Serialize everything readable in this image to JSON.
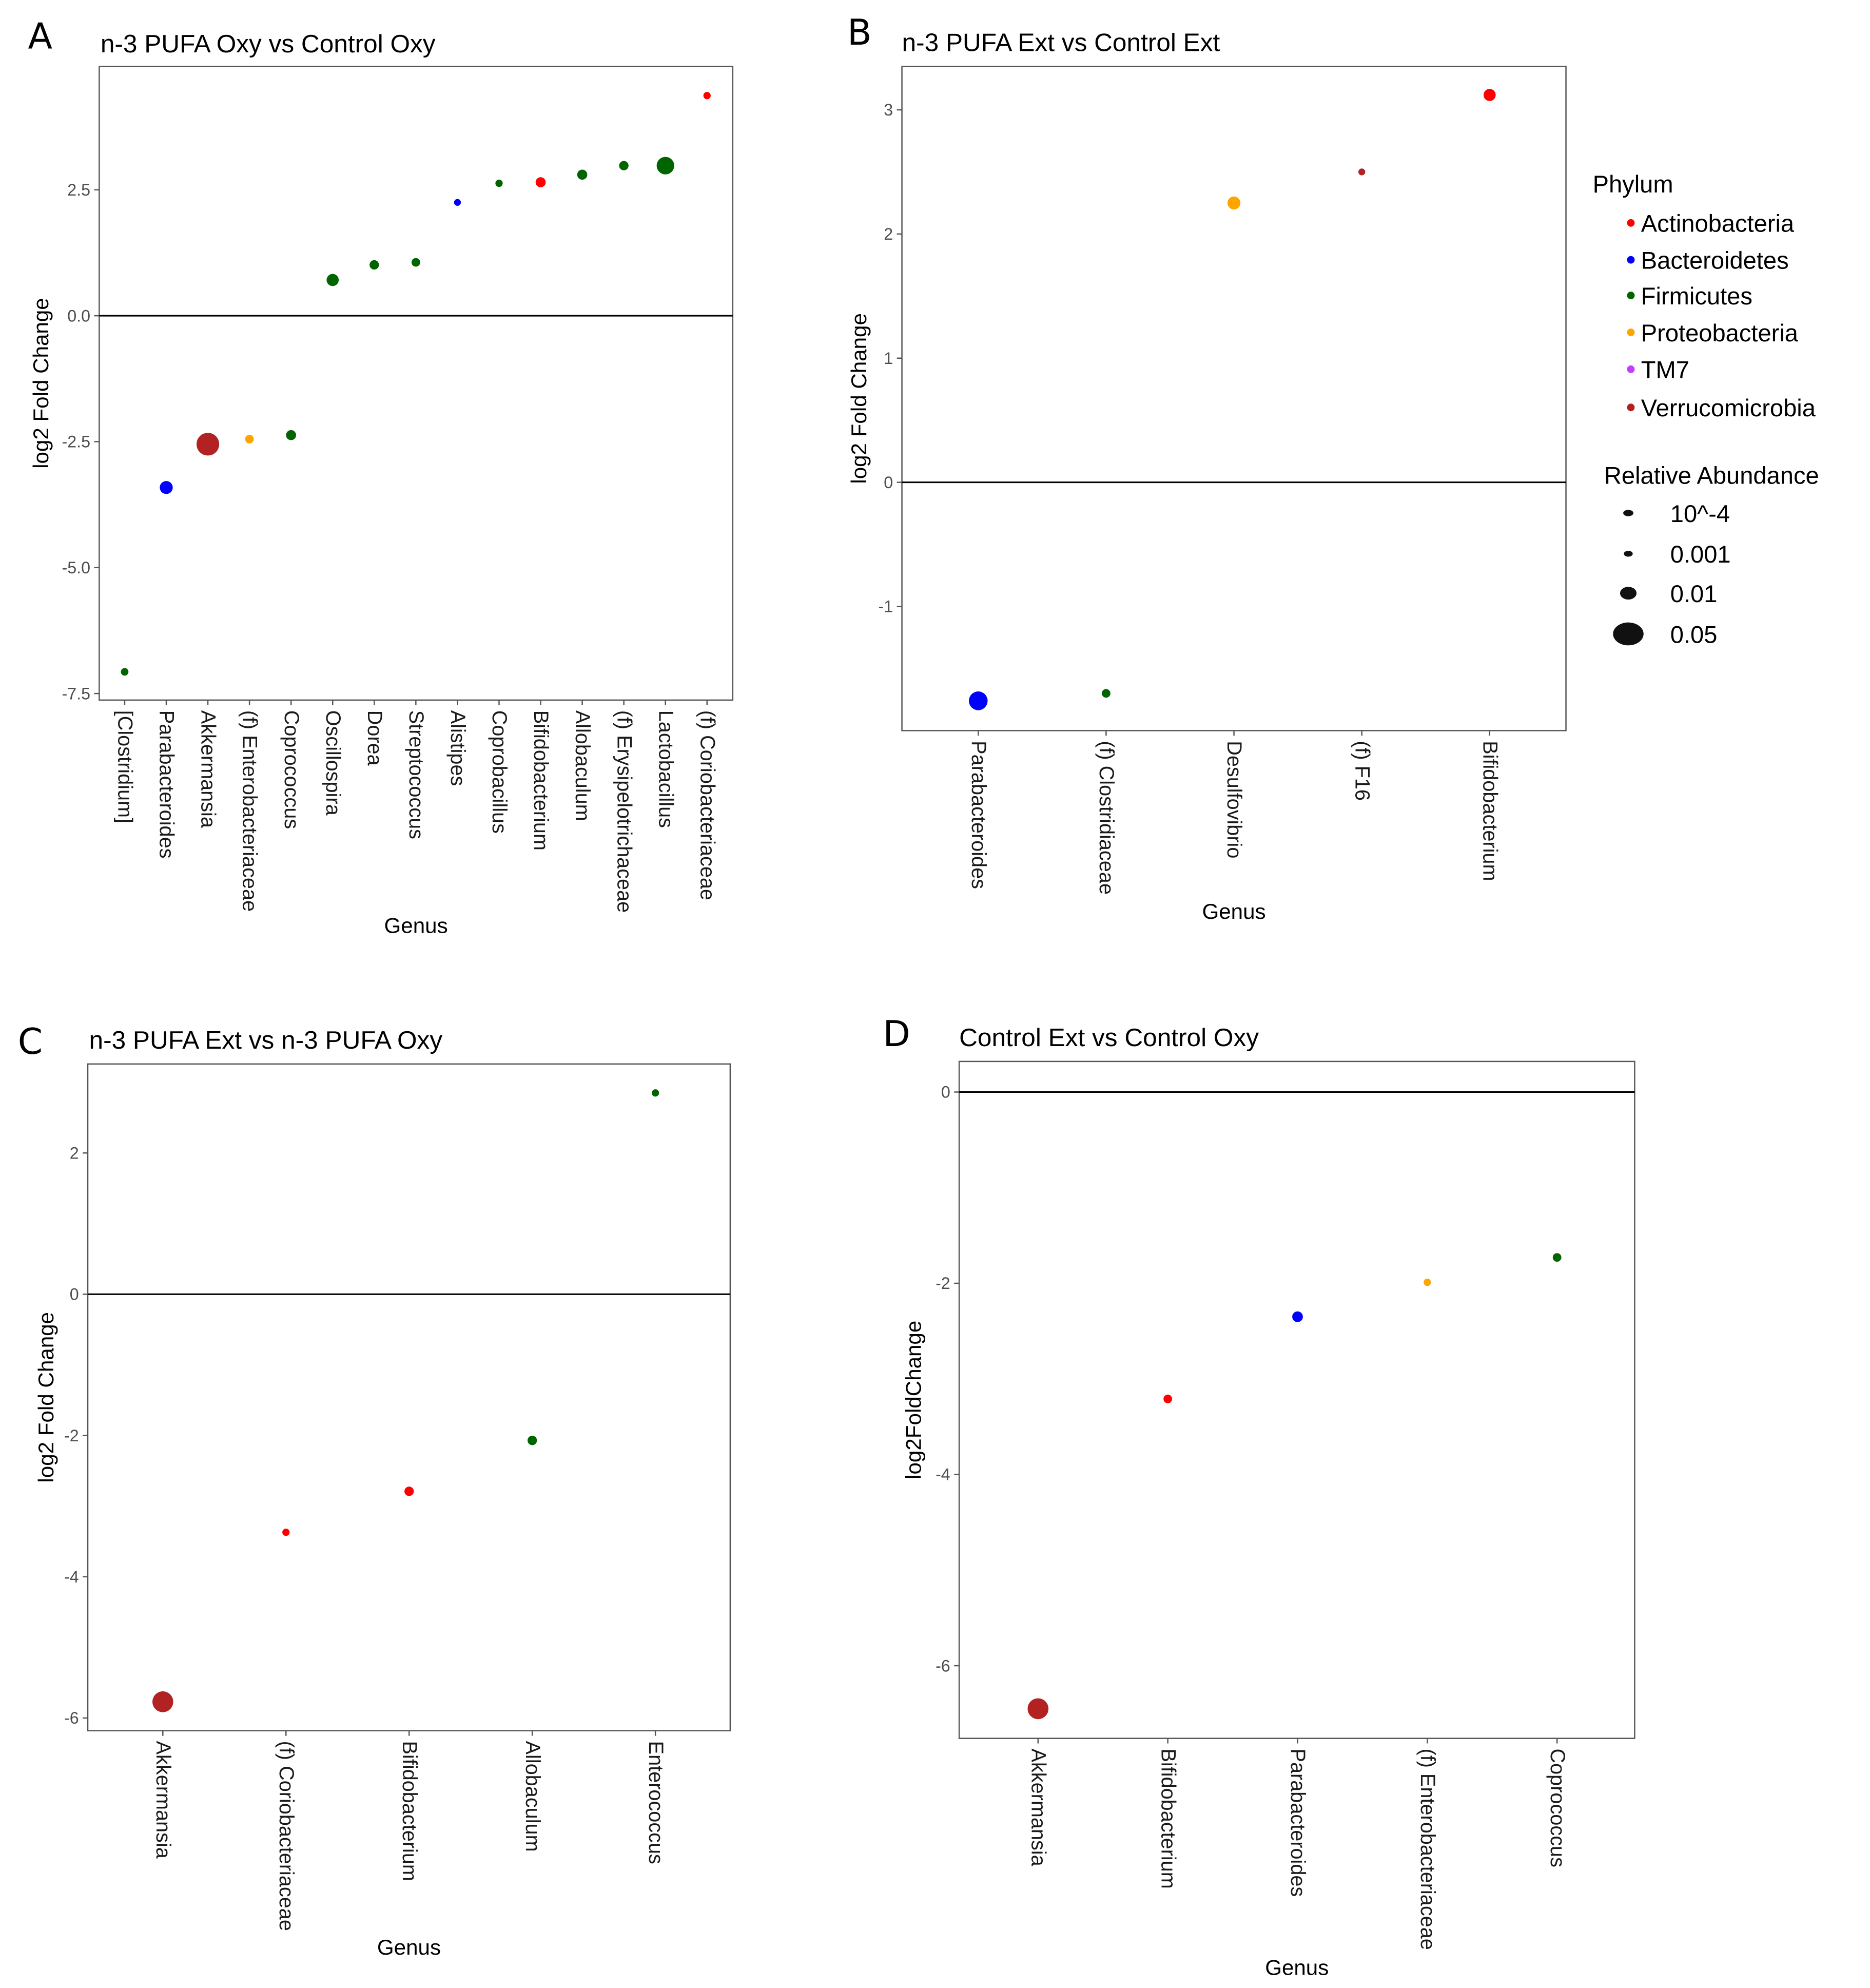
{
  "legend": {
    "phylum_title": "Phylum",
    "phyla": [
      {
        "name": "Actinobacteria",
        "color": "#ff0000"
      },
      {
        "name": "Bacteroidetes",
        "color": "#0000ff"
      },
      {
        "name": "Firmicutes",
        "color": "#006400"
      },
      {
        "name": "Proteobacteria",
        "color": "#ffa500"
      },
      {
        "name": "TM7",
        "color": "#bf3eff"
      },
      {
        "name": "Verrucomicrobia",
        "color": "#b22222"
      }
    ],
    "size_title": "Relative Abundance",
    "sizes": [
      {
        "label": "10^-4",
        "value": 0.0001
      },
      {
        "label": "0.001",
        "value": 0.001
      },
      {
        "label": "0.01",
        "value": 0.01
      },
      {
        "label": "0.05",
        "value": 0.05
      }
    ]
  },
  "chart_data": [
    {
      "type": "scatter",
      "letter": "A",
      "title": "n-3 PUFA Oxy vs Control Oxy",
      "xlabel": "Genus",
      "ylabel": "log2 Fold Change",
      "ylim": [
        -7.63,
        4.95
      ],
      "yticks": [
        2.5,
        0,
        -2.5,
        -5,
        -7.5
      ],
      "ytick_labels": [
        "2.5",
        "0.0",
        "-2.5",
        "-5.0",
        "-7.5"
      ],
      "points": [
        {
          "genus": "[Clostridium]",
          "y": -7.07,
          "phylum": "Firmicutes",
          "abundance": 0.001
        },
        {
          "genus": "Parabacteroides",
          "y": -3.41,
          "phylum": "Bacteroidetes",
          "abundance": 0.01
        },
        {
          "genus": "Akkermansia",
          "y": -2.55,
          "phylum": "Verrucomicrobia",
          "abundance": 0.05
        },
        {
          "genus": "(f) Enterobacteriaceae",
          "y": -2.45,
          "phylum": "Proteobacteria",
          "abundance": 0.002
        },
        {
          "genus": "Coprococcus",
          "y": -2.37,
          "phylum": "Firmicutes",
          "abundance": 0.004
        },
        {
          "genus": "Oscillospira",
          "y": 0.71,
          "phylum": "Firmicutes",
          "abundance": 0.008
        },
        {
          "genus": "Dorea",
          "y": 1.01,
          "phylum": "Firmicutes",
          "abundance": 0.003
        },
        {
          "genus": "Streptococcus",
          "y": 1.06,
          "phylum": "Firmicutes",
          "abundance": 0.002
        },
        {
          "genus": "Alistipes",
          "y": 2.25,
          "phylum": "Bacteroidetes",
          "abundance": 0.0005
        },
        {
          "genus": "Coprobacillus",
          "y": 2.63,
          "phylum": "Firmicutes",
          "abundance": 0.0008
        },
        {
          "genus": "Bifidobacterium",
          "y": 2.65,
          "phylum": "Actinobacteria",
          "abundance": 0.004
        },
        {
          "genus": "Allobaculum",
          "y": 2.8,
          "phylum": "Firmicutes",
          "abundance": 0.004
        },
        {
          "genus": "(f) Erysipelotrichaceae",
          "y": 2.98,
          "phylum": "Firmicutes",
          "abundance": 0.003
        },
        {
          "genus": "Lactobacillus",
          "y": 2.98,
          "phylum": "Firmicutes",
          "abundance": 0.025
        },
        {
          "genus": "(f) Coriobacteriaceae",
          "y": 4.37,
          "phylum": "Actinobacteria",
          "abundance": 0.0008
        }
      ]
    },
    {
      "type": "scatter",
      "letter": "B",
      "title": "n-3 PUFA Ext vs Control Ext",
      "xlabel": "Genus",
      "ylabel": "log2 Fold Change",
      "ylim": [
        -2.0,
        3.35
      ],
      "yticks": [
        3,
        2,
        1,
        0,
        -1
      ],
      "ytick_labels": [
        "3",
        "2",
        "1",
        "0",
        "-1"
      ],
      "points": [
        {
          "genus": "Parabacteroides",
          "y": -1.76,
          "phylum": "Bacteroidetes",
          "abundance": 0.03
        },
        {
          "genus": "(f) Clostridiaceae",
          "y": -1.7,
          "phylum": "Firmicutes",
          "abundance": 0.002
        },
        {
          "genus": "Desulfovibrio",
          "y": 2.25,
          "phylum": "Proteobacteria",
          "abundance": 0.01
        },
        {
          "genus": "(f) F16",
          "y": 2.5,
          "phylum": "Verrucomicrobia",
          "abundance": 0.0005
        },
        {
          "genus": "Bifidobacterium",
          "y": 3.12,
          "phylum": "Actinobacteria",
          "abundance": 0.008
        }
      ]
    },
    {
      "type": "scatter",
      "letter": "C",
      "title": "n-3 PUFA Ext vs n-3 PUFA Oxy",
      "xlabel": "Genus",
      "ylabel": "log2 Fold Change",
      "ylim": [
        -6.18,
        3.26
      ],
      "yticks": [
        2,
        0,
        -2,
        -4,
        -6
      ],
      "ytick_labels": [
        "2",
        "0",
        "-2",
        "-4",
        "-6"
      ],
      "points": [
        {
          "genus": "Akkermansia",
          "y": -5.77,
          "phylum": "Verrucomicrobia",
          "abundance": 0.04
        },
        {
          "genus": "(f) Coriobacteriaceae",
          "y": -3.37,
          "phylum": "Actinobacteria",
          "abundance": 0.0008
        },
        {
          "genus": "Bifidobacterium",
          "y": -2.79,
          "phylum": "Actinobacteria",
          "abundance": 0.003
        },
        {
          "genus": "Allobaculum",
          "y": -2.07,
          "phylum": "Firmicutes",
          "abundance": 0.003
        },
        {
          "genus": "Enterococcus",
          "y": 2.85,
          "phylum": "Firmicutes",
          "abundance": 0.0008
        }
      ]
    },
    {
      "type": "scatter",
      "letter": "D",
      "title": "Control Ext vs Control Oxy",
      "xlabel": "Genus",
      "ylabel": "log2FoldChange",
      "ylim": [
        -6.76,
        0.32
      ],
      "yticks": [
        0,
        -2,
        -4,
        -6
      ],
      "ytick_labels": [
        "0",
        "-2",
        "-4",
        "-6"
      ],
      "points": [
        {
          "genus": "Akkermansia",
          "y": -6.45,
          "phylum": "Verrucomicrobia",
          "abundance": 0.04
        },
        {
          "genus": "Bifidobacterium",
          "y": -3.21,
          "phylum": "Actinobacteria",
          "abundance": 0.002
        },
        {
          "genus": "Parabacteroides",
          "y": -2.35,
          "phylum": "Bacteroidetes",
          "abundance": 0.005
        },
        {
          "genus": "(f) Enterobacteriaceae",
          "y": -1.99,
          "phylum": "Proteobacteria",
          "abundance": 0.0008
        },
        {
          "genus": "Coprococcus",
          "y": -1.73,
          "phylum": "Firmicutes",
          "abundance": 0.002
        }
      ]
    }
  ]
}
